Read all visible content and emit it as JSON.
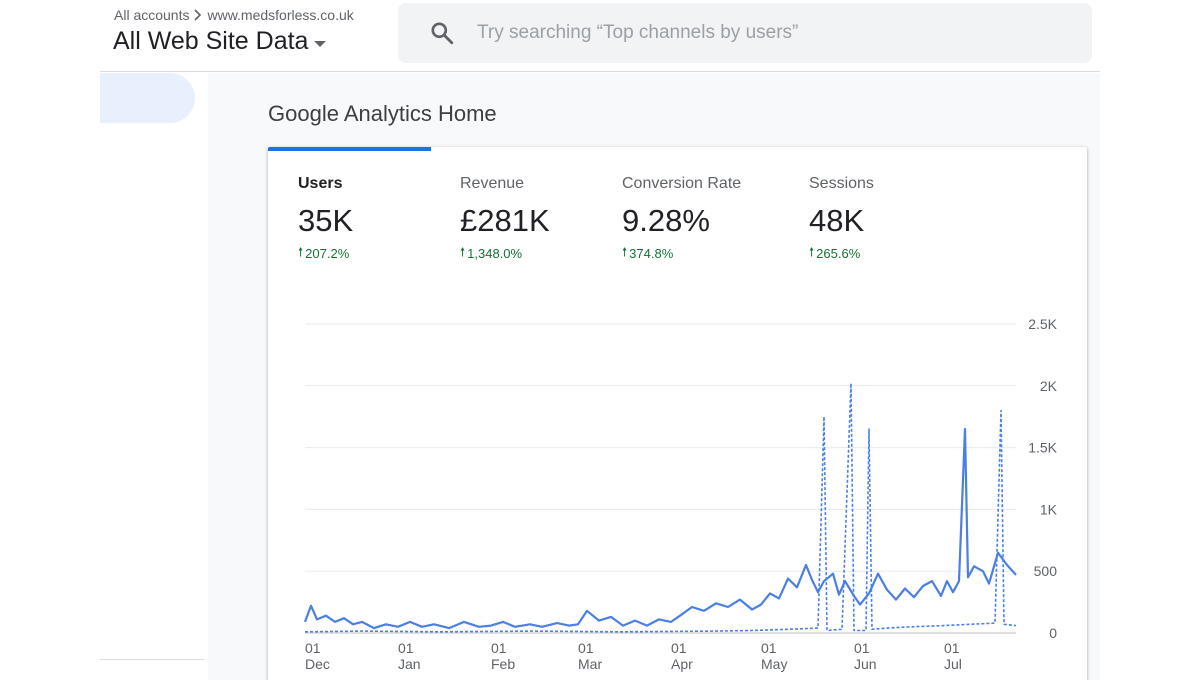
{
  "header": {
    "breadcrumb_root": "All accounts",
    "breadcrumb_account": "www.medsforless.co.uk",
    "property_name": "All Web Site Data",
    "search_placeholder": "Try searching “Top channels by users”"
  },
  "page": {
    "title": "Google Analytics Home"
  },
  "metrics": [
    {
      "label": "Users",
      "value": "35K",
      "change": "207.2%",
      "active": true
    },
    {
      "label": "Revenue",
      "value": "£281K",
      "change": "1,348.0%",
      "active": false
    },
    {
      "label": "Conversion Rate",
      "value": "9.28%",
      "change": "374.8%",
      "active": false
    },
    {
      "label": "Sessions",
      "value": "48K",
      "change": "265.6%",
      "active": false
    }
  ],
  "colors": {
    "accent": "#1a73e8",
    "series": "#4a7fe3",
    "positive": "#137333"
  },
  "chart_data": {
    "type": "line",
    "ylim": [
      0,
      2500
    ],
    "yticks": [
      0,
      500,
      1000,
      1500,
      2000,
      2500
    ],
    "ytick_labels": [
      "0",
      "500",
      "1K",
      "1.5K",
      "2K",
      "2.5K"
    ],
    "x_start": "2019-12-01",
    "x_end": "2020-07-25",
    "xticks": [
      {
        "date": "2019-12-01",
        "day": "01",
        "month": "Dec"
      },
      {
        "date": "2020-01-01",
        "day": "01",
        "month": "Jan"
      },
      {
        "date": "2020-02-01",
        "day": "01",
        "month": "Feb"
      },
      {
        "date": "2020-03-01",
        "day": "01",
        "month": "Mar"
      },
      {
        "date": "2020-04-01",
        "day": "01",
        "month": "Apr"
      },
      {
        "date": "2020-05-01",
        "day": "01",
        "month": "May"
      },
      {
        "date": "2020-06-01",
        "day": "01",
        "month": "Jun"
      },
      {
        "date": "2020-07-01",
        "day": "01",
        "month": "Jul"
      }
    ],
    "series": [
      {
        "style": "solid",
        "points": [
          [
            "2019-12-01",
            90
          ],
          [
            "2019-12-03",
            220
          ],
          [
            "2019-12-05",
            110
          ],
          [
            "2019-12-08",
            140
          ],
          [
            "2019-12-11",
            90
          ],
          [
            "2019-12-14",
            120
          ],
          [
            "2019-12-17",
            70
          ],
          [
            "2019-12-20",
            90
          ],
          [
            "2019-12-24",
            40
          ],
          [
            "2019-12-28",
            70
          ],
          [
            "2020-01-01",
            50
          ],
          [
            "2020-01-05",
            90
          ],
          [
            "2020-01-09",
            50
          ],
          [
            "2020-01-13",
            70
          ],
          [
            "2020-01-18",
            40
          ],
          [
            "2020-01-23",
            90
          ],
          [
            "2020-01-28",
            50
          ],
          [
            "2020-02-01",
            60
          ],
          [
            "2020-02-05",
            90
          ],
          [
            "2020-02-09",
            50
          ],
          [
            "2020-02-14",
            70
          ],
          [
            "2020-02-18",
            50
          ],
          [
            "2020-02-23",
            80
          ],
          [
            "2020-02-27",
            60
          ],
          [
            "2020-03-01",
            70
          ],
          [
            "2020-03-04",
            180
          ],
          [
            "2020-03-08",
            100
          ],
          [
            "2020-03-12",
            130
          ],
          [
            "2020-03-16",
            60
          ],
          [
            "2020-03-20",
            100
          ],
          [
            "2020-03-24",
            60
          ],
          [
            "2020-03-28",
            110
          ],
          [
            "2020-04-01",
            90
          ],
          [
            "2020-04-04",
            140
          ],
          [
            "2020-04-08",
            210
          ],
          [
            "2020-04-12",
            180
          ],
          [
            "2020-04-16",
            240
          ],
          [
            "2020-04-20",
            210
          ],
          [
            "2020-04-24",
            270
          ],
          [
            "2020-04-28",
            190
          ],
          [
            "2020-05-01",
            230
          ],
          [
            "2020-05-04",
            320
          ],
          [
            "2020-05-07",
            280
          ],
          [
            "2020-05-10",
            440
          ],
          [
            "2020-05-13",
            370
          ],
          [
            "2020-05-16",
            550
          ],
          [
            "2020-05-18",
            430
          ],
          [
            "2020-05-20",
            330
          ],
          [
            "2020-05-22",
            420
          ],
          [
            "2020-05-25",
            480
          ],
          [
            "2020-05-27",
            310
          ],
          [
            "2020-05-29",
            420
          ],
          [
            "2020-06-01",
            300
          ],
          [
            "2020-06-03",
            230
          ],
          [
            "2020-06-06",
            320
          ],
          [
            "2020-06-09",
            480
          ],
          [
            "2020-06-12",
            350
          ],
          [
            "2020-06-15",
            270
          ],
          [
            "2020-06-18",
            360
          ],
          [
            "2020-06-21",
            290
          ],
          [
            "2020-06-24",
            380
          ],
          [
            "2020-06-27",
            420
          ],
          [
            "2020-06-30",
            300
          ],
          [
            "2020-07-02",
            420
          ],
          [
            "2020-07-04",
            330
          ],
          [
            "2020-07-06",
            420
          ],
          [
            "2020-07-08",
            1650
          ],
          [
            "2020-07-09",
            450
          ],
          [
            "2020-07-11",
            540
          ],
          [
            "2020-07-14",
            500
          ],
          [
            "2020-07-16",
            400
          ],
          [
            "2020-07-19",
            650
          ],
          [
            "2020-07-22",
            550
          ],
          [
            "2020-07-25",
            470
          ]
        ]
      },
      {
        "style": "dashed",
        "points": [
          [
            "2019-12-01",
            10
          ],
          [
            "2019-12-20",
            15
          ],
          [
            "2020-01-15",
            10
          ],
          [
            "2020-02-15",
            15
          ],
          [
            "2020-03-15",
            10
          ],
          [
            "2020-04-15",
            15
          ],
          [
            "2020-04-28",
            20
          ],
          [
            "2020-05-10",
            30
          ],
          [
            "2020-05-20",
            40
          ],
          [
            "2020-05-22",
            1750
          ],
          [
            "2020-05-23",
            20
          ],
          [
            "2020-05-28",
            30
          ],
          [
            "2020-05-31",
            2020
          ],
          [
            "2020-06-01",
            20
          ],
          [
            "2020-06-05",
            20
          ],
          [
            "2020-06-06",
            1650
          ],
          [
            "2020-06-07",
            30
          ],
          [
            "2020-06-12",
            40
          ],
          [
            "2020-06-20",
            50
          ],
          [
            "2020-07-01",
            60
          ],
          [
            "2020-07-18",
            80
          ],
          [
            "2020-07-20",
            1800
          ],
          [
            "2020-07-21",
            70
          ],
          [
            "2020-07-25",
            60
          ]
        ]
      }
    ]
  }
}
